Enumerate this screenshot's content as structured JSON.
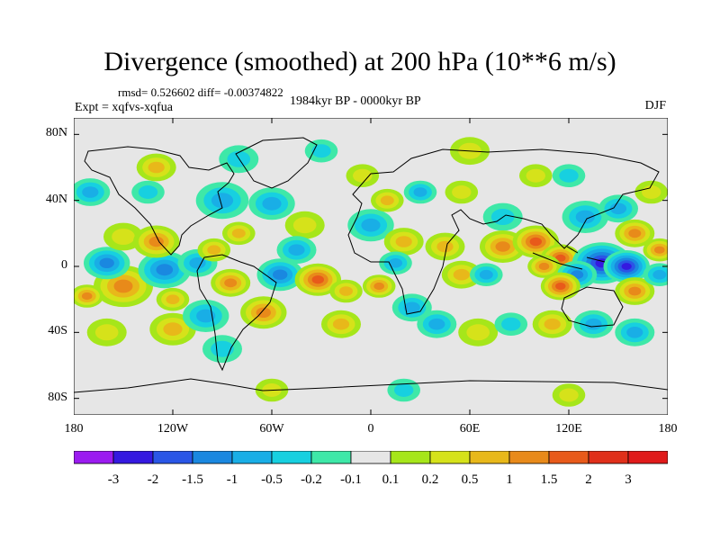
{
  "title": "Divergence (smoothed) at 200 hPa (10**6 m/s)",
  "stats_text": "rmsd= 0.526602 diff= -0.00374822",
  "experiment": "Expt = xqfvs-xqfua",
  "period": "1984kyr BP - 0000kyr BP",
  "season": "DJF",
  "chart_data": {
    "type": "heatmap",
    "projection": "cylindrical-equidistant",
    "title": "Divergence (smoothed) at 200 hPa (10**6 m/s)",
    "variable": "divergence difference",
    "units": "10**6 m/s",
    "x_range": [
      -180,
      180
    ],
    "y_range": [
      -90,
      90
    ],
    "x_ticks": [
      -180,
      -120,
      -60,
      0,
      60,
      120,
      180
    ],
    "x_tick_labels": [
      "180",
      "120W",
      "60W",
      "0",
      "60E",
      "120E",
      "180"
    ],
    "y_ticks": [
      80,
      40,
      0,
      -40,
      -80
    ],
    "y_tick_labels": [
      "80N",
      "40N",
      "0",
      "40S",
      "80S"
    ],
    "colorbar": {
      "labels": [
        "-3",
        "-2",
        "-1.5",
        "-1",
        "-0.5",
        "-0.2",
        "-0.1",
        "0.1",
        "0.2",
        "0.5",
        "1",
        "1.5",
        "2",
        "3"
      ],
      "colors": [
        "#9b1bf0",
        "#3519e0",
        "#2a56e6",
        "#1a88e0",
        "#19aee6",
        "#17d0e0",
        "#3ee8a8",
        "#e6e6e6",
        "#a6e61a",
        "#d6e21a",
        "#e8b81a",
        "#e88a1a",
        "#e85a1a",
        "#e0301a",
        "#e01a1a"
      ]
    },
    "features": [
      {
        "lon": -150,
        "lat": -12,
        "value": 1.3,
        "r": 18
      },
      {
        "lon": -172,
        "lat": -18,
        "value": 1.2,
        "r": 10
      },
      {
        "lon": -160,
        "lat": 2,
        "value": -1.1,
        "r": 14
      },
      {
        "lon": -125,
        "lat": -2,
        "value": -1.3,
        "r": 16
      },
      {
        "lon": -105,
        "lat": 2,
        "value": -0.8,
        "r": 12
      },
      {
        "lon": -150,
        "lat": 18,
        "value": 0.4,
        "r": 12
      },
      {
        "lon": -130,
        "lat": 15,
        "value": 1.4,
        "r": 14
      },
      {
        "lon": -95,
        "lat": 10,
        "value": 0.9,
        "r": 10
      },
      {
        "lon": -90,
        "lat": 40,
        "value": -0.6,
        "r": 16
      },
      {
        "lon": -60,
        "lat": 38,
        "value": -0.9,
        "r": 14
      },
      {
        "lon": -80,
        "lat": 20,
        "value": 0.6,
        "r": 10
      },
      {
        "lon": -40,
        "lat": 25,
        "value": 0.3,
        "r": 12
      },
      {
        "lon": -45,
        "lat": 10,
        "value": -0.8,
        "r": 12
      },
      {
        "lon": -55,
        "lat": -5,
        "value": -1.0,
        "r": 14
      },
      {
        "lon": -32,
        "lat": -8,
        "value": 1.6,
        "r": 14
      },
      {
        "lon": -15,
        "lat": -15,
        "value": 0.9,
        "r": 10
      },
      {
        "lon": -18,
        "lat": -35,
        "value": 0.7,
        "r": 12
      },
      {
        "lon": -65,
        "lat": -28,
        "value": 1.0,
        "r": 14
      },
      {
        "lon": -85,
        "lat": -10,
        "value": 1.2,
        "r": 12
      },
      {
        "lon": -170,
        "lat": 45,
        "value": -0.5,
        "r": 12
      },
      {
        "lon": -135,
        "lat": 45,
        "value": -0.3,
        "r": 10
      },
      {
        "lon": -160,
        "lat": -40,
        "value": 0.3,
        "r": 12
      },
      {
        "lon": -120,
        "lat": -38,
        "value": 0.6,
        "r": 14
      },
      {
        "lon": -100,
        "lat": -30,
        "value": -0.7,
        "r": 14
      },
      {
        "lon": -120,
        "lat": -20,
        "value": 0.8,
        "r": 10
      },
      {
        "lon": -90,
        "lat": -50,
        "value": -0.4,
        "r": 12
      },
      {
        "lon": -130,
        "lat": 60,
        "value": 0.5,
        "r": 12
      },
      {
        "lon": -80,
        "lat": 65,
        "value": -0.3,
        "r": 12
      },
      {
        "lon": -30,
        "lat": 70,
        "value": -0.2,
        "r": 10
      },
      {
        "lon": -5,
        "lat": 55,
        "value": 0.4,
        "r": 10
      },
      {
        "lon": 0,
        "lat": 25,
        "value": -0.7,
        "r": 14
      },
      {
        "lon": 20,
        "lat": 15,
        "value": 0.9,
        "r": 12
      },
      {
        "lon": 15,
        "lat": 2,
        "value": -0.8,
        "r": 10
      },
      {
        "lon": 5,
        "lat": -12,
        "value": 1.3,
        "r": 10
      },
      {
        "lon": 25,
        "lat": -25,
        "value": -0.7,
        "r": 12
      },
      {
        "lon": 45,
        "lat": 12,
        "value": 0.8,
        "r": 12
      },
      {
        "lon": 55,
        "lat": -5,
        "value": 0.6,
        "r": 12
      },
      {
        "lon": 70,
        "lat": -5,
        "value": -0.9,
        "r": 10
      },
      {
        "lon": 40,
        "lat": -35,
        "value": -0.9,
        "r": 12
      },
      {
        "lon": 65,
        "lat": -40,
        "value": 0.4,
        "r": 12
      },
      {
        "lon": 85,
        "lat": -35,
        "value": -0.4,
        "r": 10
      },
      {
        "lon": 10,
        "lat": 40,
        "value": 0.5,
        "r": 10
      },
      {
        "lon": 30,
        "lat": 45,
        "value": -0.5,
        "r": 10
      },
      {
        "lon": 55,
        "lat": 45,
        "value": 0.3,
        "r": 10
      },
      {
        "lon": 80,
        "lat": 30,
        "value": -0.4,
        "r": 12
      },
      {
        "lon": 60,
        "lat": 70,
        "value": 0.3,
        "r": 12
      },
      {
        "lon": 100,
        "lat": 55,
        "value": 0.2,
        "r": 10
      },
      {
        "lon": 80,
        "lat": 12,
        "value": 1.2,
        "r": 14
      },
      {
        "lon": 100,
        "lat": 15,
        "value": 1.8,
        "r": 14
      },
      {
        "lon": 115,
        "lat": 5,
        "value": 1.9,
        "r": 12
      },
      {
        "lon": 105,
        "lat": 0,
        "value": 1.2,
        "r": 10
      },
      {
        "lon": 140,
        "lat": 2,
        "value": -2.5,
        "r": 18
      },
      {
        "lon": 155,
        "lat": 0,
        "value": -2.0,
        "r": 14
      },
      {
        "lon": 125,
        "lat": -5,
        "value": -1.0,
        "r": 12
      },
      {
        "lon": 115,
        "lat": -12,
        "value": 1.6,
        "r": 12
      },
      {
        "lon": 160,
        "lat": -15,
        "value": 1.0,
        "r": 12
      },
      {
        "lon": 135,
        "lat": -35,
        "value": -0.6,
        "r": 12
      },
      {
        "lon": 110,
        "lat": -35,
        "value": 0.6,
        "r": 12
      },
      {
        "lon": 160,
        "lat": -40,
        "value": -0.5,
        "r": 12
      },
      {
        "lon": 130,
        "lat": 30,
        "value": -0.9,
        "r": 14
      },
      {
        "lon": 150,
        "lat": 35,
        "value": -0.7,
        "r": 12
      },
      {
        "lon": 160,
        "lat": 20,
        "value": 1.1,
        "r": 12
      },
      {
        "lon": 175,
        "lat": 10,
        "value": 1.2,
        "r": 10
      },
      {
        "lon": 170,
        "lat": 45,
        "value": 0.4,
        "r": 10
      },
      {
        "lon": 175,
        "lat": -5,
        "value": -0.8,
        "r": 10
      },
      {
        "lon": 120,
        "lat": 55,
        "value": -0.3,
        "r": 10
      },
      {
        "lon": 20,
        "lat": -75,
        "value": -0.3,
        "r": 10
      },
      {
        "lon": -60,
        "lat": -75,
        "value": 0.3,
        "r": 10
      },
      {
        "lon": 120,
        "lat": -78,
        "value": 0.2,
        "r": 10
      }
    ]
  }
}
